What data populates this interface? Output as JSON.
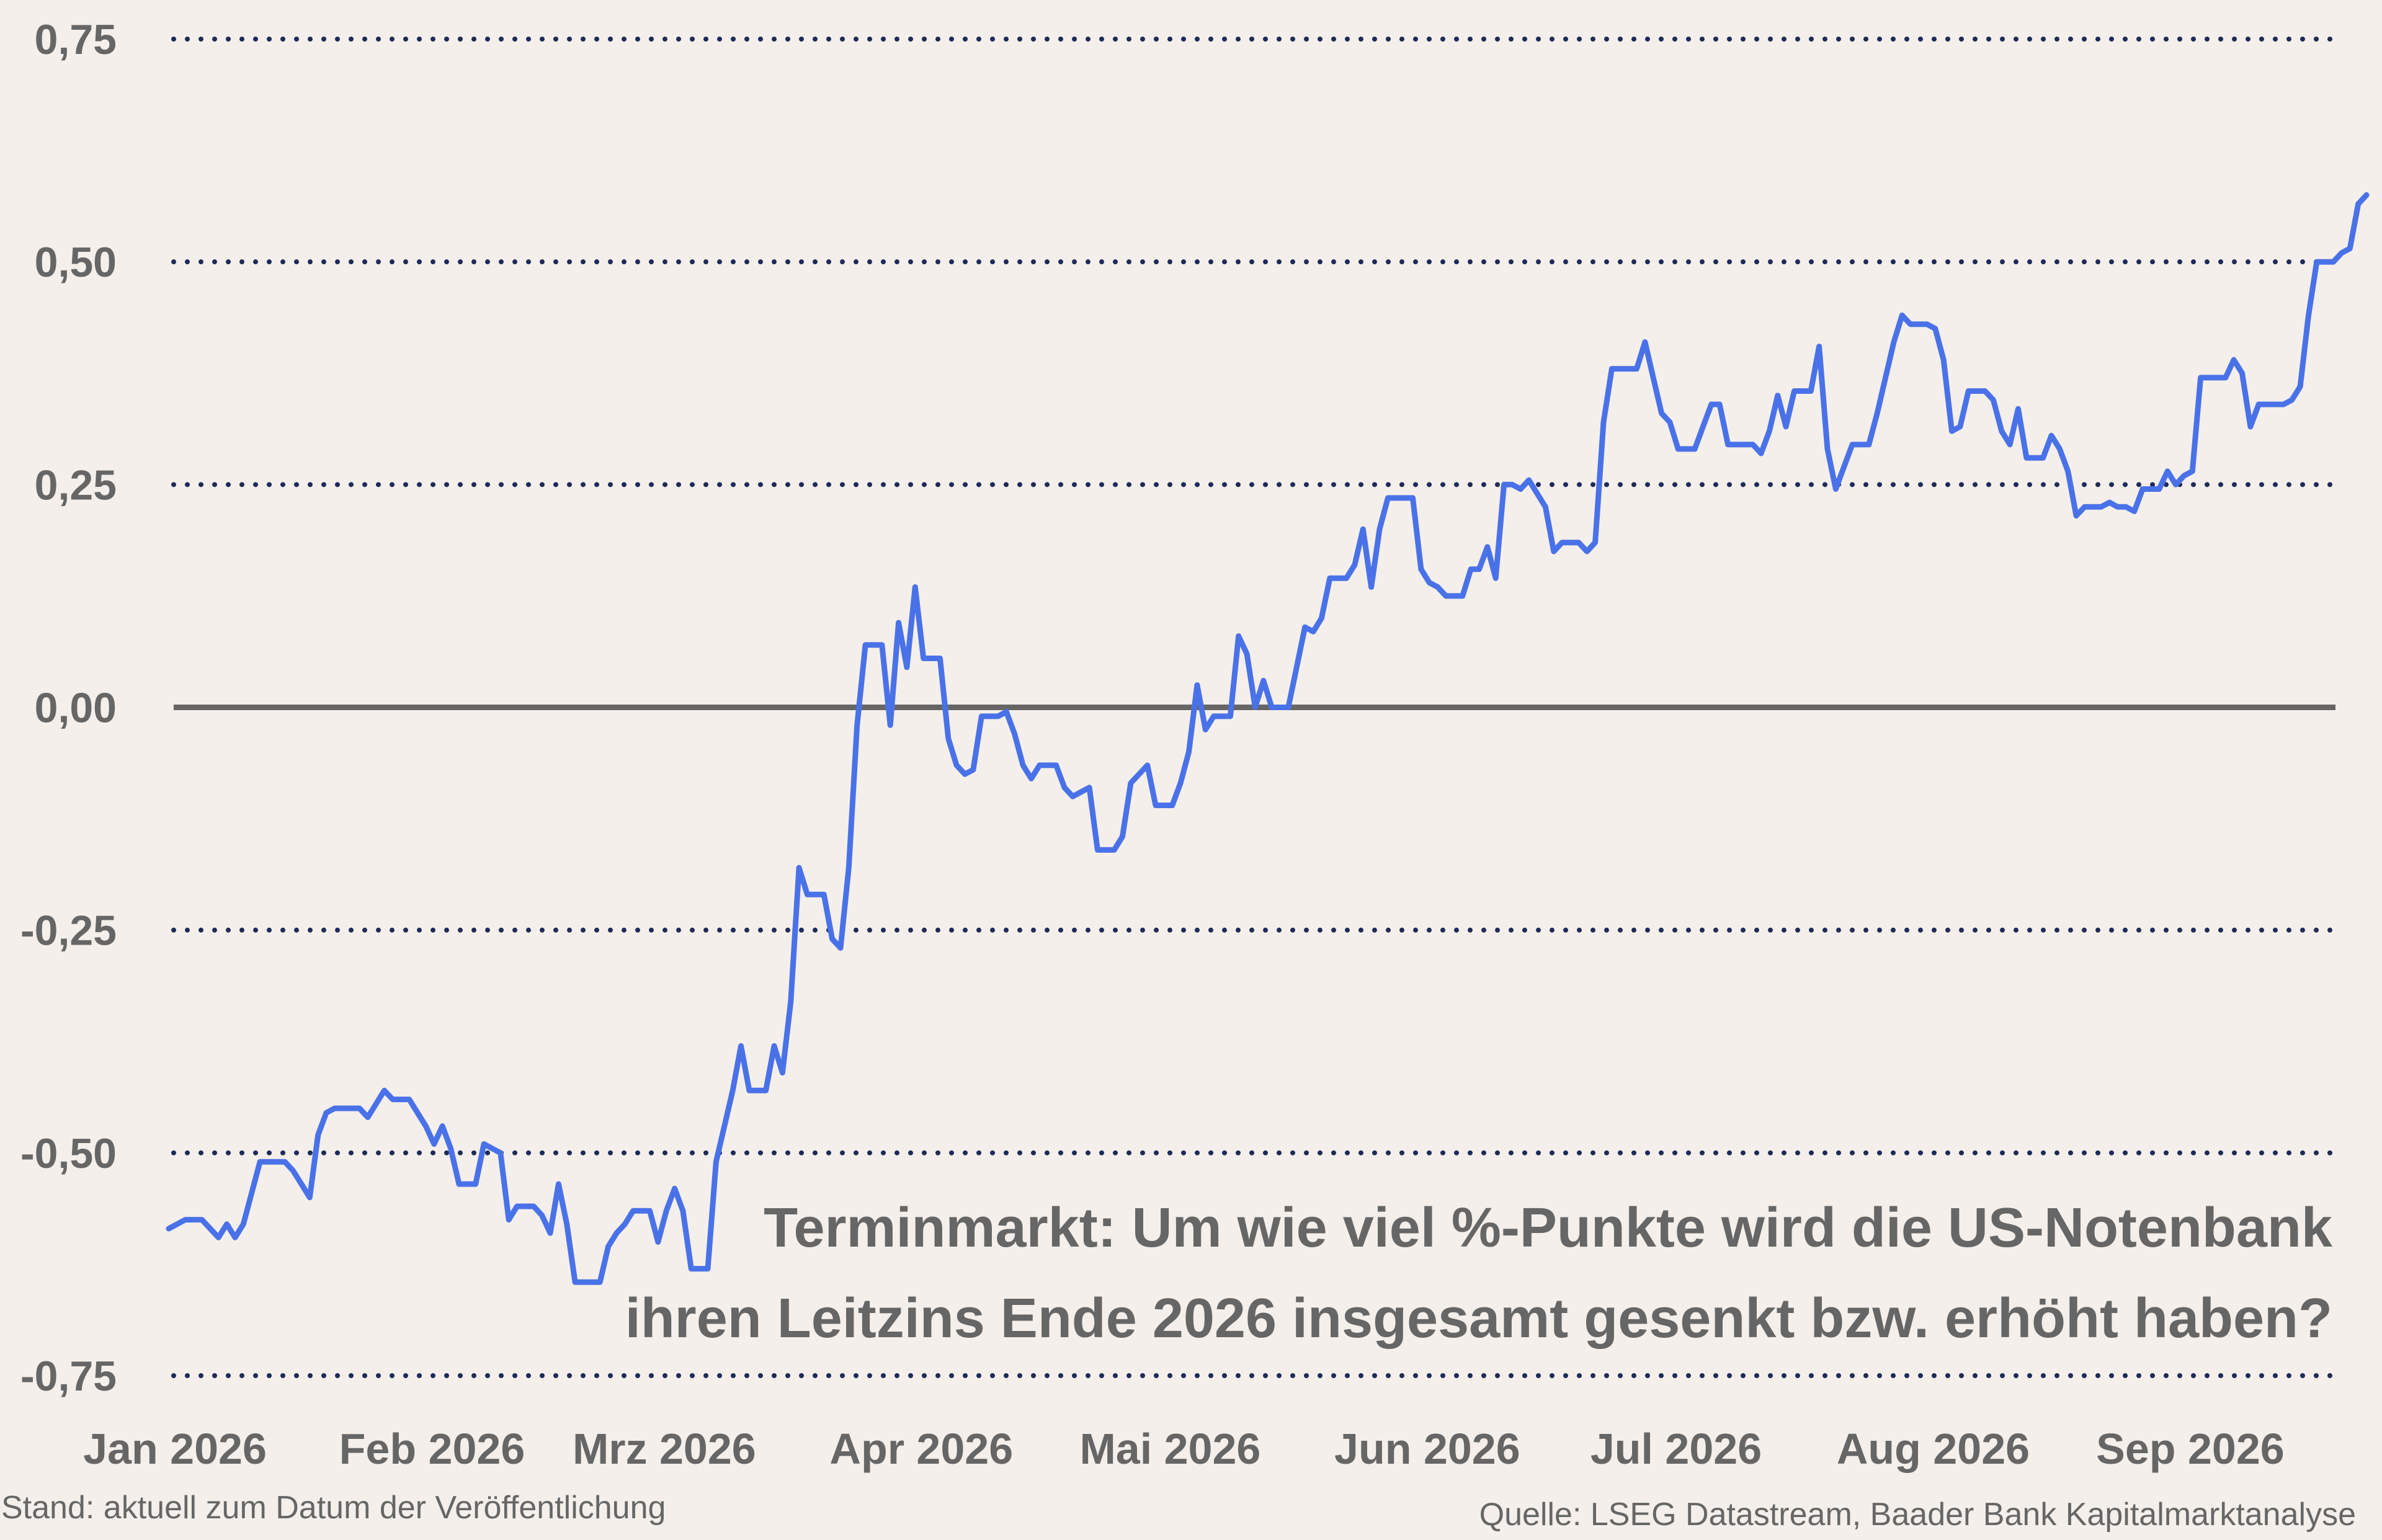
{
  "chart_data": {
    "type": "line",
    "title_lines": [
      "Terminmarkt: Um wie viel %-Punkte wird die US-Notenbank",
      "ihren Leitzins Ende 2026 insgesamt gesenkt bzw. erhöht haben?"
    ],
    "ylim": [
      -0.75,
      0.75
    ],
    "yticks": [
      0.75,
      0.5,
      0.25,
      0.0,
      -0.25,
      -0.5,
      -0.75
    ],
    "ytick_labels": [
      "0,75",
      "0,50",
      "0,25",
      "0,00",
      "-0,25",
      "-0,50",
      "-0,75"
    ],
    "zero_line": true,
    "grid": "dotted horizontal",
    "xlim_days": [
      0,
      291
    ],
    "x_ticks": [
      {
        "day": 0,
        "label": "Jan 2026"
      },
      {
        "day": 31,
        "label": "Feb 2026"
      },
      {
        "day": 59,
        "label": "Mrz 2026"
      },
      {
        "day": 90,
        "label": "Apr 2026"
      },
      {
        "day": 120,
        "label": "Mai 2026"
      },
      {
        "day": 151,
        "label": "Jun 2026"
      },
      {
        "day": 181,
        "label": "Jul 2026"
      },
      {
        "day": 212,
        "label": "Aug 2026"
      },
      {
        "day": 243,
        "label": "Sep 2026"
      }
    ],
    "series": [
      {
        "color": "#4a72e8",
        "points": [
          [
            0,
            -0.585
          ],
          [
            1,
            -0.58
          ],
          [
            2,
            -0.575
          ],
          [
            4,
            -0.575
          ],
          [
            5,
            -0.585
          ],
          [
            6,
            -0.595
          ],
          [
            7,
            -0.58
          ],
          [
            8,
            -0.595
          ],
          [
            9,
            -0.58
          ],
          [
            10,
            -0.545
          ],
          [
            11,
            -0.51
          ],
          [
            12,
            -0.51
          ],
          [
            14,
            -0.51
          ],
          [
            15,
            -0.52
          ],
          [
            16,
            -0.535
          ],
          [
            17,
            -0.55
          ],
          [
            18,
            -0.48
          ],
          [
            19,
            -0.455
          ],
          [
            20,
            -0.45
          ],
          [
            21,
            -0.45
          ],
          [
            23,
            -0.45
          ],
          [
            24,
            -0.46
          ],
          [
            25,
            -0.445
          ],
          [
            26,
            -0.43
          ],
          [
            27,
            -0.44
          ],
          [
            29,
            -0.44
          ],
          [
            30,
            -0.455
          ],
          [
            31,
            -0.47
          ],
          [
            32,
            -0.49
          ],
          [
            33,
            -0.47
          ],
          [
            34,
            -0.495
          ],
          [
            35,
            -0.535
          ],
          [
            36,
            -0.535
          ],
          [
            37,
            -0.535
          ],
          [
            38,
            -0.49
          ],
          [
            39,
            -0.495
          ],
          [
            40,
            -0.5
          ],
          [
            41,
            -0.575
          ],
          [
            42,
            -0.56
          ],
          [
            43,
            -0.56
          ],
          [
            44,
            -0.56
          ],
          [
            45,
            -0.57
          ],
          [
            46,
            -0.59
          ],
          [
            47,
            -0.535
          ],
          [
            48,
            -0.58
          ],
          [
            49,
            -0.645
          ],
          [
            50,
            -0.645
          ],
          [
            51,
            -0.645
          ],
          [
            52,
            -0.645
          ],
          [
            53,
            -0.605
          ],
          [
            54,
            -0.59
          ],
          [
            55,
            -0.58
          ],
          [
            56,
            -0.565
          ],
          [
            57,
            -0.565
          ],
          [
            58,
            -0.565
          ],
          [
            59,
            -0.6
          ],
          [
            60,
            -0.565
          ],
          [
            61,
            -0.54
          ],
          [
            62,
            -0.565
          ],
          [
            63,
            -0.63
          ],
          [
            64,
            -0.63
          ],
          [
            65,
            -0.63
          ],
          [
            66,
            -0.51
          ],
          [
            67,
            -0.47
          ],
          [
            68,
            -0.43
          ],
          [
            69,
            -0.38
          ],
          [
            70,
            -0.43
          ],
          [
            71,
            -0.43
          ],
          [
            72,
            -0.43
          ],
          [
            73,
            -0.38
          ],
          [
            74,
            -0.41
          ],
          [
            75,
            -0.33
          ],
          [
            76,
            -0.18
          ],
          [
            77,
            -0.21
          ],
          [
            78,
            -0.21
          ],
          [
            79,
            -0.21
          ],
          [
            80,
            -0.26
          ],
          [
            81,
            -0.27
          ],
          [
            82,
            -0.18
          ],
          [
            83,
            -0.02
          ],
          [
            84,
            0.07
          ],
          [
            85,
            0.07
          ],
          [
            86,
            0.07
          ],
          [
            87,
            -0.02
          ],
          [
            88,
            0.095
          ],
          [
            89,
            0.045
          ],
          [
            90,
            0.135
          ],
          [
            91,
            0.055
          ],
          [
            92,
            0.055
          ],
          [
            93,
            0.055
          ],
          [
            94,
            -0.035
          ],
          [
            95,
            -0.065
          ],
          [
            96,
            -0.075
          ],
          [
            97,
            -0.07
          ],
          [
            98,
            -0.01
          ],
          [
            99,
            -0.01
          ],
          [
            100,
            -0.01
          ],
          [
            101,
            -0.005
          ],
          [
            102,
            -0.03
          ],
          [
            103,
            -0.065
          ],
          [
            104,
            -0.08
          ],
          [
            105,
            -0.065
          ],
          [
            106,
            -0.065
          ],
          [
            107,
            -0.065
          ],
          [
            108,
            -0.09
          ],
          [
            109,
            -0.1
          ],
          [
            110,
            -0.095
          ],
          [
            111,
            -0.09
          ],
          [
            112,
            -0.16
          ],
          [
            113,
            -0.16
          ],
          [
            114,
            -0.16
          ],
          [
            115,
            -0.145
          ],
          [
            116,
            -0.085
          ],
          [
            117,
            -0.075
          ],
          [
            118,
            -0.065
          ],
          [
            119,
            -0.11
          ],
          [
            120,
            -0.11
          ],
          [
            121,
            -0.11
          ],
          [
            122,
            -0.085
          ],
          [
            123,
            -0.05
          ],
          [
            124,
            0.025
          ],
          [
            125,
            -0.025
          ],
          [
            126,
            -0.01
          ],
          [
            127,
            -0.01
          ],
          [
            128,
            -0.01
          ],
          [
            129,
            0.08
          ],
          [
            130,
            0.06
          ],
          [
            131,
            0.0
          ],
          [
            132,
            0.03
          ],
          [
            133,
            0.0
          ],
          [
            134,
            0.0
          ],
          [
            135,
            0.0
          ],
          [
            136,
            0.045
          ],
          [
            137,
            0.09
          ],
          [
            138,
            0.085
          ],
          [
            139,
            0.1
          ],
          [
            140,
            0.145
          ],
          [
            141,
            0.145
          ],
          [
            142,
            0.145
          ],
          [
            143,
            0.16
          ],
          [
            144,
            0.2
          ],
          [
            145,
            0.135
          ],
          [
            146,
            0.2
          ],
          [
            147,
            0.235
          ],
          [
            148,
            0.235
          ],
          [
            149,
            0.235
          ],
          [
            150,
            0.235
          ],
          [
            151,
            0.155
          ],
          [
            152,
            0.14
          ],
          [
            153,
            0.135
          ],
          [
            154,
            0.125
          ],
          [
            155,
            0.125
          ],
          [
            156,
            0.125
          ],
          [
            157,
            0.155
          ],
          [
            158,
            0.155
          ],
          [
            159,
            0.18
          ],
          [
            160,
            0.145
          ],
          [
            161,
            0.25
          ],
          [
            162,
            0.25
          ],
          [
            163,
            0.245
          ],
          [
            164,
            0.255
          ],
          [
            165,
            0.24
          ],
          [
            166,
            0.225
          ],
          [
            167,
            0.175
          ],
          [
            168,
            0.185
          ],
          [
            169,
            0.185
          ],
          [
            170,
            0.185
          ],
          [
            171,
            0.175
          ],
          [
            172,
            0.185
          ],
          [
            173,
            0.32
          ],
          [
            174,
            0.38
          ],
          [
            175,
            0.38
          ],
          [
            176,
            0.38
          ],
          [
            177,
            0.38
          ],
          [
            178,
            0.41
          ],
          [
            179,
            0.37
          ],
          [
            180,
            0.33
          ],
          [
            181,
            0.32
          ],
          [
            182,
            0.29
          ],
          [
            183,
            0.29
          ],
          [
            184,
            0.29
          ],
          [
            185,
            0.315
          ],
          [
            186,
            0.34
          ],
          [
            187,
            0.34
          ],
          [
            188,
            0.295
          ],
          [
            189,
            0.295
          ],
          [
            190,
            0.295
          ],
          [
            191,
            0.295
          ],
          [
            192,
            0.285
          ],
          [
            193,
            0.31
          ],
          [
            194,
            0.35
          ],
          [
            195,
            0.315
          ],
          [
            196,
            0.355
          ],
          [
            197,
            0.355
          ],
          [
            198,
            0.355
          ],
          [
            199,
            0.405
          ],
          [
            200,
            0.29
          ],
          [
            201,
            0.245
          ],
          [
            202,
            0.27
          ],
          [
            203,
            0.295
          ],
          [
            204,
            0.295
          ],
          [
            205,
            0.295
          ],
          [
            206,
            0.33
          ],
          [
            207,
            0.37
          ],
          [
            208,
            0.41
          ],
          [
            209,
            0.44
          ],
          [
            210,
            0.43
          ],
          [
            211,
            0.43
          ],
          [
            212,
            0.43
          ],
          [
            213,
            0.425
          ],
          [
            214,
            0.39
          ],
          [
            215,
            0.31
          ],
          [
            216,
            0.315
          ],
          [
            217,
            0.355
          ],
          [
            218,
            0.355
          ],
          [
            219,
            0.355
          ],
          [
            220,
            0.345
          ],
          [
            221,
            0.31
          ],
          [
            222,
            0.295
          ],
          [
            223,
            0.335
          ],
          [
            224,
            0.28
          ],
          [
            225,
            0.28
          ],
          [
            226,
            0.28
          ],
          [
            227,
            0.305
          ],
          [
            228,
            0.29
          ],
          [
            229,
            0.265
          ],
          [
            230,
            0.215
          ],
          [
            231,
            0.225
          ],
          [
            232,
            0.225
          ],
          [
            233,
            0.225
          ],
          [
            234,
            0.23
          ],
          [
            235,
            0.225
          ],
          [
            236,
            0.225
          ],
          [
            237,
            0.22
          ],
          [
            238,
            0.245
          ],
          [
            239,
            0.245
          ],
          [
            240,
            0.245
          ],
          [
            241,
            0.265
          ],
          [
            242,
            0.25
          ],
          [
            243,
            0.26
          ],
          [
            244,
            0.265
          ],
          [
            245,
            0.37
          ],
          [
            246,
            0.37
          ],
          [
            247,
            0.37
          ],
          [
            248,
            0.37
          ],
          [
            249,
            0.39
          ],
          [
            250,
            0.375
          ],
          [
            251,
            0.315
          ],
          [
            252,
            0.34
          ],
          [
            253,
            0.34
          ],
          [
            254,
            0.34
          ],
          [
            255,
            0.34
          ],
          [
            256,
            0.345
          ],
          [
            257,
            0.36
          ],
          [
            258,
            0.44
          ],
          [
            259,
            0.5
          ],
          [
            260,
            0.5
          ],
          [
            261,
            0.5
          ],
          [
            262,
            0.51
          ],
          [
            263,
            0.515
          ],
          [
            264,
            0.565
          ],
          [
            265,
            0.575
          ]
        ]
      }
    ]
  },
  "footer": {
    "left": "Stand: aktuell zum Datum der Veröffentlichung",
    "right": "Quelle: LSEG Datastream, Baader Bank Kapitalmarktanalyse"
  },
  "colors": {
    "background": "#f4efea",
    "line": "#4a72e8",
    "grid": "#1e2a5a",
    "zero": "#666666",
    "text": "#666666"
  }
}
